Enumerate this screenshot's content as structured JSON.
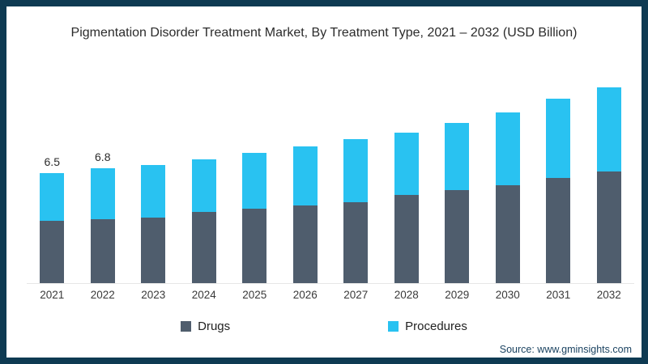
{
  "source": {
    "text": "Source: www.gminsights.com"
  },
  "chart_data": {
    "type": "bar",
    "stacked": true,
    "title": "Pigmentation Disorder Treatment Market, By Treatment Type, 2021 – 2032 (USD Billion)",
    "categories": [
      "2021",
      "2022",
      "2023",
      "2024",
      "2025",
      "2026",
      "2027",
      "2028",
      "2029",
      "2030",
      "2031",
      "2032"
    ],
    "series": [
      {
        "name": "Drugs",
        "color": "#4f5d6d",
        "values": [
          3.7,
          3.8,
          3.9,
          4.2,
          4.4,
          4.6,
          4.8,
          5.2,
          5.5,
          5.8,
          6.2,
          6.6
        ]
      },
      {
        "name": "Procedures",
        "color": "#29c2f1",
        "values": [
          2.8,
          3.0,
          3.1,
          3.1,
          3.3,
          3.5,
          3.7,
          3.7,
          4.0,
          4.3,
          4.7,
          5.0
        ]
      }
    ],
    "data_labels": [
      "6.5",
      "6.8",
      "",
      "",
      "",
      "",
      "",
      "",
      "",
      "",
      "",
      ""
    ],
    "totals": [
      6.5,
      6.8,
      7.0,
      7.3,
      7.7,
      8.1,
      8.5,
      8.9,
      9.5,
      10.1,
      10.9,
      11.6
    ],
    "xlabel": "",
    "ylabel": "",
    "ylim": [
      0,
      12.5
    ],
    "grid": false,
    "legend_position": "bottom",
    "frame_color": "#0e3a52",
    "baseline_color": "#e6e6e6"
  }
}
